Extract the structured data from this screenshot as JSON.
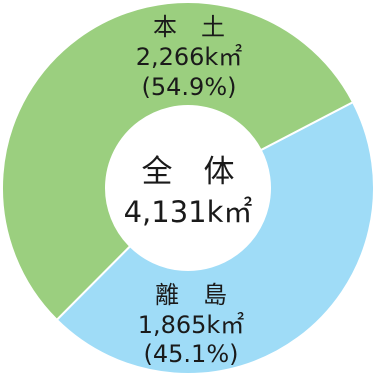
{
  "chart_data": {
    "type": "pie",
    "style": "donut",
    "center": {
      "title": "全　体",
      "total": "4,131k㎡"
    },
    "slices": [
      {
        "name": "本　土",
        "area": "2,266k㎡",
        "percent_label": "(54.9%)",
        "value": 54.9,
        "color": "#9bcf7f"
      },
      {
        "name": "離　島",
        "area": "1,865k㎡",
        "percent_label": "(45.1%)",
        "value": 45.1,
        "color": "#9fdcf7"
      }
    ]
  }
}
